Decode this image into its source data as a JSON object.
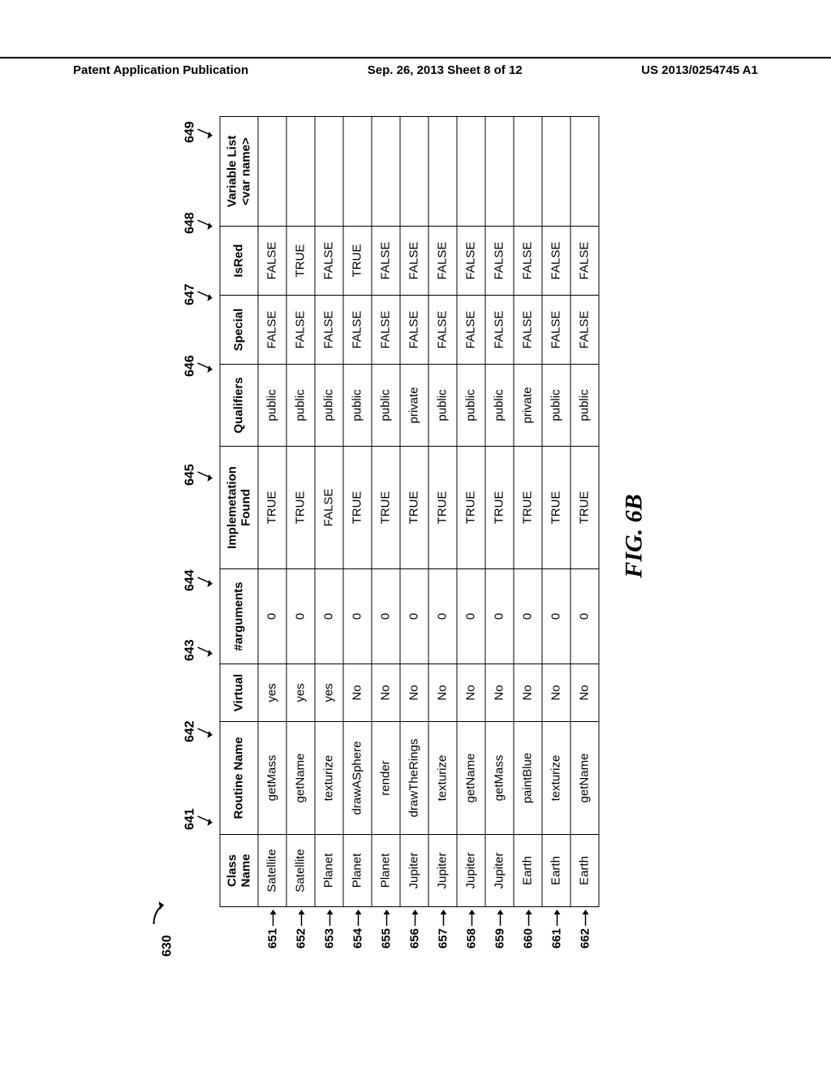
{
  "header": {
    "left": "Patent Application Publication",
    "center": "Sep. 26, 2013  Sheet 8 of 12",
    "right": "US 2013/0254745 A1"
  },
  "figure": {
    "mainRef": "630",
    "caption": "FIG. 6B",
    "columnRefs": [
      "641",
      "642",
      "643",
      "644",
      "645",
      "646",
      "647",
      "648",
      "649"
    ],
    "columnRefX": [
      112,
      220,
      320,
      406,
      536,
      670,
      758,
      846,
      958
    ],
    "headers": [
      "Class\nName",
      "Routine Name",
      "Virtual",
      "#arguments",
      "Implemetation\nFound",
      "Qualifiers",
      "Special",
      "IsRed",
      "Variable List\n<var name>"
    ],
    "rowRefs": [
      "651",
      "652",
      "653",
      "654",
      "655",
      "656",
      "657",
      "658",
      "659",
      "660",
      "661",
      "662"
    ],
    "rows": [
      [
        "Satellite",
        "getMass",
        "yes",
        "0",
        "TRUE",
        "public",
        "FALSE",
        "FALSE",
        ""
      ],
      [
        "Satellite",
        "getName",
        "yes",
        "0",
        "TRUE",
        "public",
        "FALSE",
        "TRUE",
        ""
      ],
      [
        "Planet",
        "texturize",
        "yes",
        "0",
        "FALSE",
        "public",
        "FALSE",
        "FALSE",
        ""
      ],
      [
        "Planet",
        "drawASphere",
        "No",
        "0",
        "TRUE",
        "public",
        "FALSE",
        "TRUE",
        ""
      ],
      [
        "Planet",
        "render",
        "No",
        "0",
        "TRUE",
        "public",
        "FALSE",
        "FALSE",
        ""
      ],
      [
        "Jupiter",
        "drawTheRings",
        "No",
        "0",
        "TRUE",
        "private",
        "FALSE",
        "FALSE",
        ""
      ],
      [
        "Jupiter",
        "texturize",
        "No",
        "0",
        "TRUE",
        "public",
        "FALSE",
        "FALSE",
        ""
      ],
      [
        "Jupiter",
        "getName",
        "No",
        "0",
        "TRUE",
        "public",
        "FALSE",
        "FALSE",
        ""
      ],
      [
        "Jupiter",
        "getMass",
        "No",
        "0",
        "TRUE",
        "public",
        "FALSE",
        "FALSE",
        ""
      ],
      [
        "Earth",
        "paintBlue",
        "No",
        "0",
        "TRUE",
        "private",
        "FALSE",
        "FALSE",
        ""
      ],
      [
        "Earth",
        "texturize",
        "No",
        "0",
        "TRUE",
        "public",
        "FALSE",
        "FALSE",
        ""
      ],
      [
        "Earth",
        "getName",
        "No",
        "0",
        "TRUE",
        "public",
        "FALSE",
        "FALSE",
        ""
      ]
    ]
  }
}
